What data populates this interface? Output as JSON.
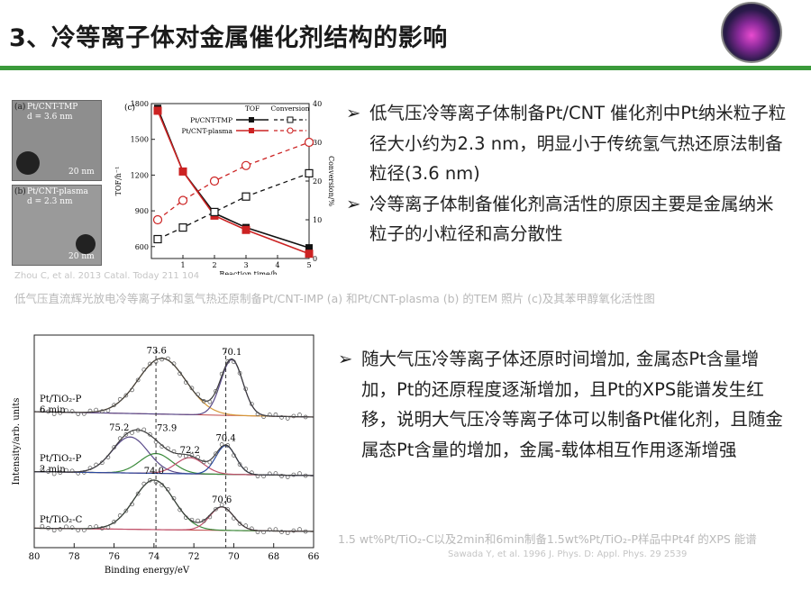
{
  "slide": {
    "title": "3、冷等离子体对金属催化剂结构的影响"
  },
  "figure1": {
    "tem_a_label": "(a)",
    "tem_a_text": "Pt/CNT-TMP",
    "tem_a_size": "d = 3.6 nm",
    "tem_b_label": "(b)",
    "tem_b_text": "Pt/CNT-plasma",
    "tem_b_size": "d = 2.3 nm",
    "scalebar": "20 nm",
    "chart_label": "(c)",
    "reference": "Zhou C, et al. 2013 Catal. Today 211 104",
    "caption": "低气压直流辉光放电冷等离子体和氢气热还原制备Pt/CNT-IMP (a) 和Pt/CNT-plasma (b) 的TEM 照片 (c)及其苯甲醇氧化活性图"
  },
  "bullets_top": [
    "低气压冷等离子体制备Pt/CNT  催化剂中Pt纳米粒子粒径大小约为2.3  nm，明显小于传统氢气热还原法制备粒径(3.6 nm)",
    "冷等离子体制备催化剂高活性的原因主要是金属纳米粒子的小粒径和高分散性"
  ],
  "bullets_bottom": [
    "随大气压冷等离子体还原时间增加, 金属态Pt含量增加，Pt的还原程度逐渐增加，且Pt的XPS能谱发生红移，说明大气压冷等离子体可以制备Pt催化剂，且随金属态Pt含量的增加，金属-载体相互作用逐渐增强"
  ],
  "figure2": {
    "caption": "1.5 wt%Pt/TiO₂-C以及2min和6min制备1.5wt%Pt/TiO₂-P样品中Pt4f  的XPS 能谱",
    "reference": "Sawada Y, et al. 1996 J. Phys. D: Appl. Phys. 29 2539"
  },
  "chart_data": [
    {
      "type": "line",
      "xlabel": "Reaction time/h",
      "ylabel": "TOF/h⁻¹",
      "y2label": "Conversion/%",
      "xlim": [
        0,
        5
      ],
      "ylim": [
        500,
        1800
      ],
      "y2lim": [
        0,
        40
      ],
      "xticks": [
        1,
        2,
        3,
        4,
        5
      ],
      "yticks": [
        600,
        900,
        1200,
        1500,
        1800
      ],
      "y2ticks": [
        0,
        10,
        20,
        30,
        40
      ],
      "legend_headers": [
        "TOF",
        "Conversion"
      ],
      "series": [
        {
          "name": "Pt/CNT-TMP",
          "axis": "TOF",
          "color": "#111111",
          "x": [
            0.2,
            1,
            2,
            3,
            5
          ],
          "values": [
            1760,
            1230,
            880,
            760,
            590
          ]
        },
        {
          "name": "Pt/CNT-plasma",
          "axis": "TOF",
          "color": "#cc2222",
          "x": [
            0.2,
            1,
            2,
            3,
            5
          ],
          "values": [
            1740,
            1230,
            860,
            740,
            540
          ]
        },
        {
          "name": "Pt/CNT-TMP",
          "axis": "Conversion",
          "color": "#111111",
          "x": [
            0.2,
            1,
            2,
            3,
            5
          ],
          "values": [
            5,
            8,
            12,
            16,
            22
          ]
        },
        {
          "name": "Pt/CNT-plasma",
          "axis": "Conversion",
          "color": "#cc2222",
          "x": [
            0.2,
            1,
            2,
            3,
            5
          ],
          "values": [
            10,
            15,
            20,
            24,
            30
          ]
        }
      ]
    },
    {
      "type": "line",
      "xlabel": "Binding energy/eV",
      "ylabel": "Intensity/arb. units",
      "xlim": [
        80,
        66
      ],
      "xticks": [
        80,
        78,
        76,
        74,
        72,
        70,
        68,
        66
      ],
      "spectra": [
        {
          "name": "Pt/TiO₂-P 6 min",
          "peaks": [
            {
              "center": 73.6,
              "label": "73.6"
            },
            {
              "center": 70.1,
              "label": "70.1"
            }
          ]
        },
        {
          "name": "Pt/TiO₂-P 2 min",
          "peaks": [
            {
              "center": 75.2,
              "label": "75.2"
            },
            {
              "center": 73.9,
              "label": "73.9"
            },
            {
              "center": 72.2,
              "label": "72.2"
            },
            {
              "center": 70.4,
              "label": "70.4"
            }
          ]
        },
        {
          "name": "Pt/TiO₂-C",
          "peaks": [
            {
              "center": 74.0,
              "label": "74.0"
            },
            {
              "center": 70.6,
              "label": "70.6"
            }
          ]
        }
      ]
    }
  ]
}
